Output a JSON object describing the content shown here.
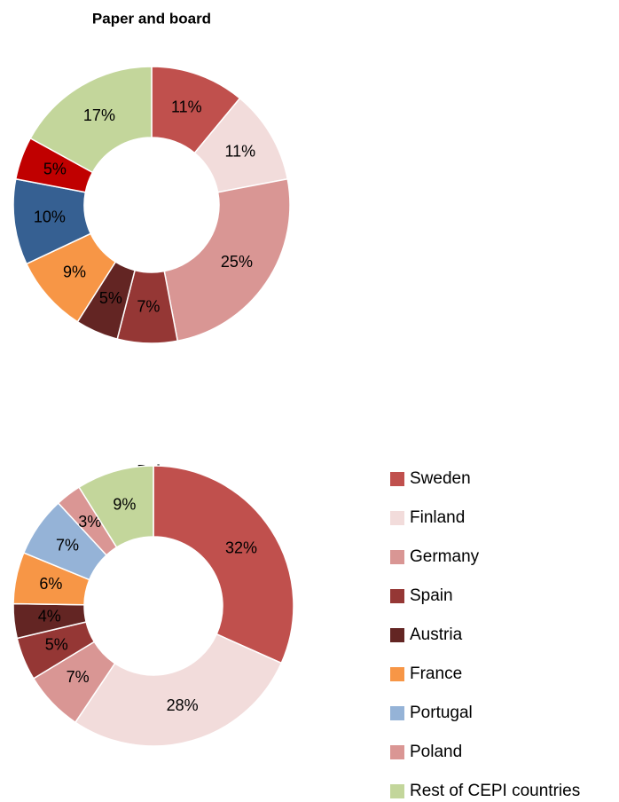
{
  "chart_data": [
    {
      "type": "donut",
      "title": "Paper and board",
      "values": [
        11,
        11,
        25,
        7,
        5,
        9,
        10,
        5,
        17
      ],
      "value_labels": [
        "11%",
        "11%",
        "25%",
        "7%",
        "5%",
        "9%",
        "10%",
        "5%",
        "17%"
      ],
      "colors": [
        "#c0504d",
        "#f2dcdb",
        "#d99694",
        "#953735",
        "#632523",
        "#f79646",
        "#366092",
        "#c00000",
        "#c3d69b"
      ]
    },
    {
      "type": "donut",
      "title": "Pulp",
      "categories": [
        "Sweden",
        "Finland",
        "Germany",
        "Spain",
        "Austria",
        "France",
        "Portugal",
        "Poland",
        "Rest of CEPI countries"
      ],
      "values": [
        32,
        28,
        7,
        5,
        4,
        6,
        7,
        3,
        9
      ],
      "value_labels": [
        "32%",
        "28%",
        "7%",
        "5%",
        "4%",
        "6%",
        "7%",
        "3%",
        "9%"
      ],
      "colors": [
        "#c0504d",
        "#f2dcdb",
        "#d99694",
        "#953735",
        "#632523",
        "#f79646",
        "#95b3d7",
        "#da9694",
        "#c3d69b"
      ],
      "legend": "right"
    }
  ]
}
